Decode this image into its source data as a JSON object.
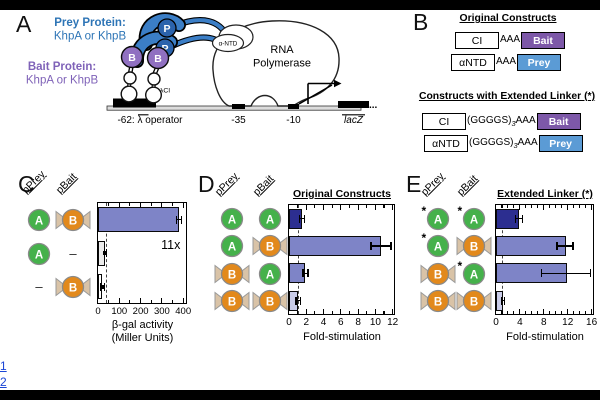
{
  "colors": {
    "prey_blue": "#2e75b6",
    "bait_purple": "#7f62b8",
    "bait_box": "#7d58a8",
    "prey_box": "#5b9bd5",
    "p_circle": "#2b63ac",
    "crescent_blue": "#3b7ec6",
    "b_circle": "#9070c1",
    "green_a": "#45b14b",
    "orange_b": "#e2891c",
    "wing_tan": "#d9c3a7",
    "link_blue": "#1b46d6"
  },
  "panelA": {
    "label": "A",
    "prey_title": "Prey Protein:",
    "prey_subtitle": "KhpA or KhpB",
    "bait_title": "Bait Protein:",
    "bait_subtitle": "KhpA or KhpB",
    "p_letter": "P",
    "b_letter": "B",
    "lci_label": "λCI",
    "antd_label": "α-NTD",
    "rnap_line1": "RNA",
    "rnap_line2": "Polymerase",
    "operator_label": "-62: λ operator",
    "minus35_label": "-35",
    "minus10_label": "-10",
    "lacz_label": "lacZ",
    "ellipsis": "..."
  },
  "panelB": {
    "label": "B",
    "header_original": "Original Constructs",
    "header_extended": "Constructs with Extended Linker (*)",
    "rows": [
      {
        "name": "CI",
        "linker_pre": "AAA",
        "linker_sub": "",
        "linker_post": "",
        "tag": "Bait",
        "tag_type": "bait"
      },
      {
        "name": "αNTD",
        "linker_pre": "AAA",
        "linker_sub": "",
        "linker_post": "",
        "tag": "Prey",
        "tag_type": "prey"
      },
      {
        "name": "CI",
        "linker_pre": "(GGGGS)",
        "linker_sub": "3",
        "linker_post": "AAA",
        "tag": "Bait",
        "tag_type": "bait"
      },
      {
        "name": "αNTD",
        "linker_pre": "(GGGGS)",
        "linker_sub": "3",
        "linker_post": "AAA",
        "tag": "Prey",
        "tag_type": "prey"
      }
    ]
  },
  "chart_data": [
    {
      "type": "bar",
      "panel": "C",
      "col_headers": [
        "pPrey",
        "pBait"
      ],
      "title": "",
      "xlabel": "β-gal activity",
      "xlabel2": "(Miller Units)",
      "xlim": [
        0,
        415
      ],
      "xticks": [
        0,
        100,
        200,
        300,
        400
      ],
      "minor_step": 50,
      "dashed_x": 36,
      "annotation": "11x",
      "rows": [
        {
          "prey": "A",
          "bait": "B",
          "value": 380,
          "err_lo": 368,
          "err_hi": 392,
          "color": "#7e84c7"
        },
        {
          "prey": "A",
          "bait": "–",
          "value": 35,
          "err_lo": 31,
          "err_hi": 39,
          "color": "#ececec",
          "dot": true
        },
        {
          "prey": "–",
          "bait": "B",
          "value": 18,
          "err_lo": 13,
          "err_hi": 30,
          "color": "#ffffff",
          "dot": true
        }
      ]
    },
    {
      "type": "bar",
      "panel": "D",
      "col_headers": [
        "pPrey",
        "pBait"
      ],
      "title": "Original Constructs",
      "xlabel": "Fold-stimulation",
      "xlim": [
        0,
        12.2
      ],
      "xticks": [
        0,
        2,
        4,
        6,
        8,
        10,
        12
      ],
      "minor_step": 1,
      "dashed_x": 1,
      "rows": [
        {
          "prey": "A",
          "bait": "A",
          "value": 1.5,
          "err_lo": 1.2,
          "err_hi": 1.8,
          "color": "#2c2e90"
        },
        {
          "prey": "A",
          "bait": "B",
          "value": 10.6,
          "err_lo": 9.5,
          "err_hi": 11.8,
          "color": "#7e84c7"
        },
        {
          "prey": "B",
          "bait": "A",
          "value": 1.9,
          "err_lo": 1.6,
          "err_hi": 2.2,
          "color": "#7e84c7"
        },
        {
          "prey": "B",
          "bait": "B",
          "value": 1.0,
          "err_lo": 0.8,
          "err_hi": 1.3,
          "color": "#c9cce9"
        }
      ]
    },
    {
      "type": "bar",
      "panel": "E",
      "col_headers": [
        "pPrey",
        "pBait"
      ],
      "title": "Extended Linker (*)",
      "xlabel": "Fold-stimulation",
      "xlim": [
        0,
        16.3
      ],
      "xticks": [
        0,
        4,
        8,
        12,
        16
      ],
      "minor_step": 1,
      "dashed_x": 1,
      "rows": [
        {
          "prey": "A*",
          "bait": "A*",
          "value": 3.8,
          "err_lo": 3.3,
          "err_hi": 4.4,
          "color": "#2c2e90"
        },
        {
          "prey": "A*",
          "bait": "B",
          "value": 11.7,
          "err_lo": 10.2,
          "err_hi": 12.9,
          "color": "#7e84c7"
        },
        {
          "prey": "B",
          "bait": "A*",
          "value": 11.9,
          "err_lo": 7.6,
          "err_hi": 15.8,
          "color": "#7e84c7"
        },
        {
          "prey": "B",
          "bait": "B",
          "value": 1.1,
          "err_lo": 0.9,
          "err_hi": 1.4,
          "color": "#c9cce9"
        }
      ]
    }
  ],
  "footer_links": [
    "1",
    "2"
  ]
}
